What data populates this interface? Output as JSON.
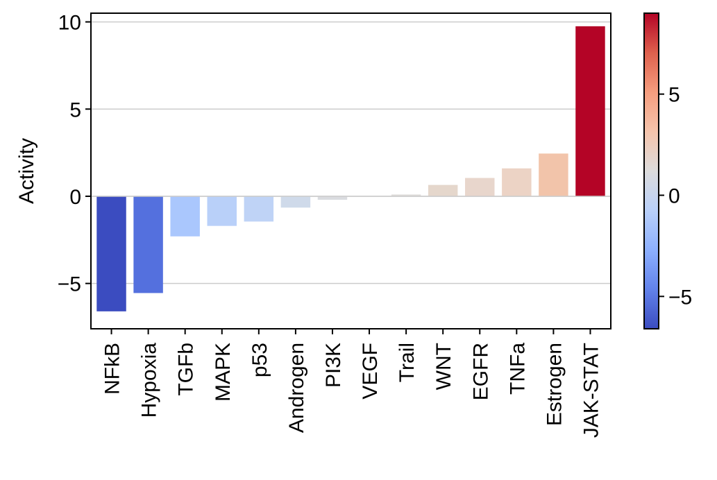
{
  "chart_data": {
    "type": "bar",
    "ylabel": "Activity",
    "xlabel": "",
    "categories": [
      "NFkB",
      "Hypoxia",
      "TGFb",
      "MAPK",
      "p53",
      "Androgen",
      "PI3K",
      "VEGF",
      "Trail",
      "WNT",
      "EGFR",
      "TNFa",
      "Estrogen",
      "JAK-STAT"
    ],
    "values": [
      -6.6,
      -5.55,
      -2.3,
      -1.7,
      -1.45,
      -0.65,
      -0.2,
      -0.02,
      0.1,
      0.65,
      1.05,
      1.6,
      2.45,
      9.75
    ],
    "bar_colors": [
      "#3b4cc0",
      "#5470de",
      "#aac7fd",
      "#b9d0f9",
      "#bfd3f6",
      "#cfdaea",
      "#dadce0",
      "#dddddd",
      "#dedbd9",
      "#e5d7cc",
      "#e8d6cc",
      "#ecd3c5",
      "#f2c4aa",
      "#b40426"
    ],
    "ylim": [
      -7.6,
      10.5
    ],
    "yticks": [
      -5,
      0,
      5,
      10
    ],
    "ytick_labels": [
      "−5",
      "0",
      "5",
      "10"
    ],
    "grid": "horizontal",
    "zero_line": true,
    "colorbar": {
      "colormap": "coolwarm",
      "range": [
        -6.6,
        9.0
      ],
      "ticks": [
        -5,
        0,
        5
      ],
      "tick_labels": [
        "−5",
        "0",
        "5"
      ],
      "colors": [
        "#3b4cc0",
        "#6282ea",
        "#8db0fe",
        "#b9d0f9",
        "#dddcdc",
        "#f5c4ac",
        "#f59d7e",
        "#de604d",
        "#b40426"
      ]
    }
  }
}
